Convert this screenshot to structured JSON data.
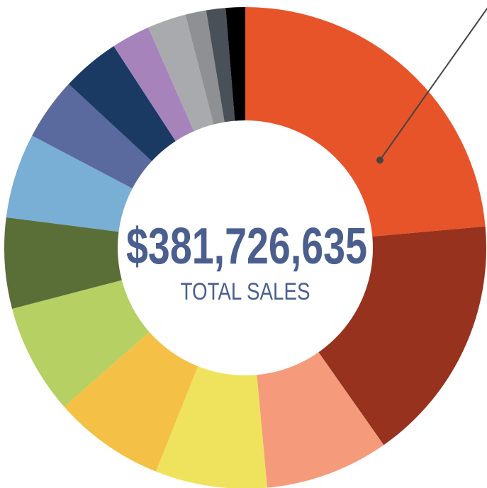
{
  "chart_data": {
    "type": "donut",
    "center_value": "$381,726,635",
    "center_label": "TOTAL SALES",
    "values": [
      23.6,
      16.7,
      8.3,
      7.5,
      7.5,
      7.4,
      6.1,
      5.7,
      4.2,
      3.9,
      2.6,
      2.6,
      1.4,
      1.3,
      1.3
    ],
    "colors": [
      "#e8542a",
      "#97321e",
      "#f59b7b",
      "#efe35d",
      "#f4c146",
      "#b6d063",
      "#5a6f37",
      "#79aed5",
      "#5a6a9e",
      "#1a3a64",
      "#a783bc",
      "#a9aaae",
      "#8e9094",
      "#4a5058",
      "#000000"
    ]
  }
}
